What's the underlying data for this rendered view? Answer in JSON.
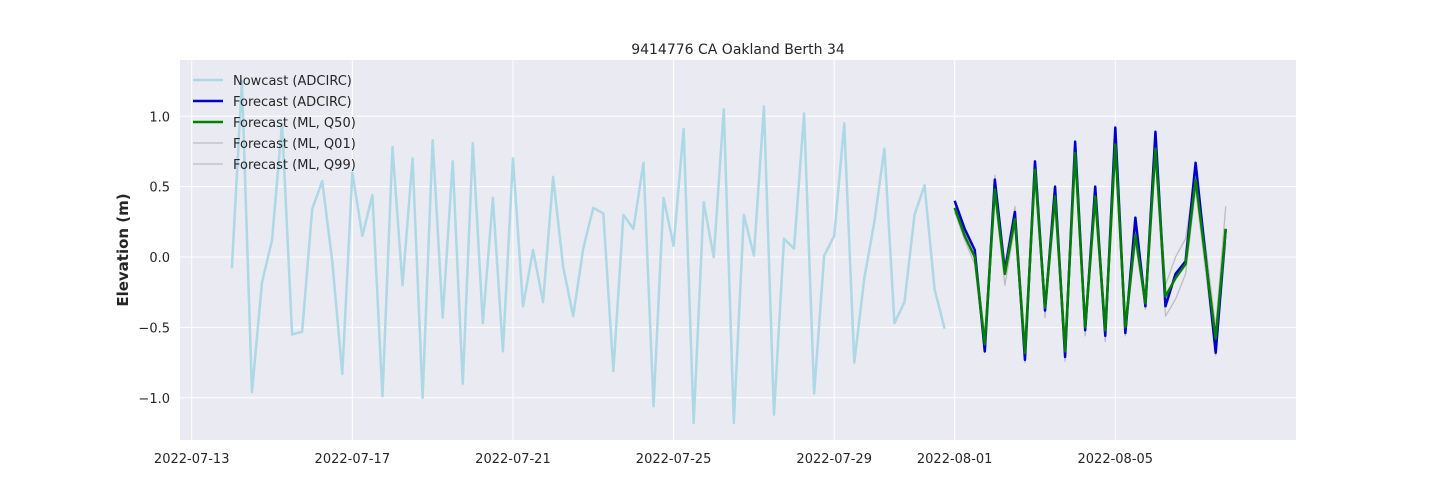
{
  "chart_data": {
    "type": "line",
    "title": "9414776 CA Oakland Berth 34",
    "xlabel": "",
    "ylabel": "Elevation (m)",
    "xlim": [
      "2022-07-12T17:00",
      "2022-08-09T12:00"
    ],
    "ylim": [
      -1.3,
      1.4
    ],
    "grid": true,
    "legend": "top-left",
    "xticks": [
      "2022-07-13",
      "2022-07-17",
      "2022-07-21",
      "2022-07-25",
      "2022-07-29",
      "2022-08-01",
      "2022-08-05"
    ],
    "yticks": [
      -1.0,
      -0.5,
      0.0,
      0.5,
      1.0
    ],
    "ytick_labels": [
      "−1.0",
      "−0.5",
      "0.0",
      "0.5",
      "1.0"
    ],
    "colors": {
      "background": "#eaeaf2",
      "grid": "#ffffff",
      "nowcast": "#add8e6",
      "forecast_adcirc": "#0000cd",
      "forecast_q50": "#008000",
      "forecast_q01": "#bdbdbd",
      "forecast_q99": "#bdbdbd"
    },
    "series": [
      {
        "name": "Nowcast (ADCIRC)",
        "x": [
          "2022-07-14T00:00",
          "2022-07-14T06:00",
          "2022-07-14T12:00",
          "2022-07-14T18:00",
          "2022-07-15T00:00",
          "2022-07-15T06:00",
          "2022-07-15T12:00",
          "2022-07-15T18:00",
          "2022-07-16T00:00",
          "2022-07-16T06:00",
          "2022-07-16T12:00",
          "2022-07-16T18:00",
          "2022-07-17T00:00",
          "2022-07-17T06:00",
          "2022-07-17T12:00",
          "2022-07-17T18:00",
          "2022-07-18T00:00",
          "2022-07-18T06:00",
          "2022-07-18T12:00",
          "2022-07-18T18:00",
          "2022-07-19T00:00",
          "2022-07-19T06:00",
          "2022-07-19T12:00",
          "2022-07-19T18:00",
          "2022-07-20T00:00",
          "2022-07-20T06:00",
          "2022-07-20T12:00",
          "2022-07-20T18:00",
          "2022-07-21T00:00",
          "2022-07-21T06:00",
          "2022-07-21T12:00",
          "2022-07-21T18:00",
          "2022-07-22T00:00",
          "2022-07-22T06:00",
          "2022-07-22T12:00",
          "2022-07-22T18:00",
          "2022-07-23T00:00",
          "2022-07-23T06:00",
          "2022-07-23T12:00",
          "2022-07-23T18:00",
          "2022-07-24T00:00",
          "2022-07-24T06:00",
          "2022-07-24T12:00",
          "2022-07-24T18:00",
          "2022-07-25T00:00",
          "2022-07-25T06:00",
          "2022-07-25T12:00",
          "2022-07-25T18:00",
          "2022-07-26T00:00",
          "2022-07-26T06:00",
          "2022-07-26T12:00",
          "2022-07-26T18:00",
          "2022-07-27T00:00",
          "2022-07-27T06:00",
          "2022-07-27T12:00",
          "2022-07-27T18:00",
          "2022-07-28T00:00",
          "2022-07-28T06:00",
          "2022-07-28T12:00",
          "2022-07-28T18:00",
          "2022-07-29T00:00",
          "2022-07-29T06:00",
          "2022-07-29T12:00",
          "2022-07-29T18:00",
          "2022-07-30T00:00",
          "2022-07-30T06:00",
          "2022-07-30T12:00",
          "2022-07-30T18:00",
          "2022-07-31T00:00",
          "2022-07-31T06:00",
          "2022-07-31T12:00",
          "2022-07-31T18:00"
        ],
        "values": [
          -0.08,
          1.25,
          -0.96,
          -0.18,
          0.12,
          0.95,
          -0.55,
          -0.53,
          0.34,
          0.54,
          -0.03,
          -0.83,
          0.6,
          0.15,
          0.44,
          -0.99,
          0.78,
          -0.2,
          0.7,
          -1.0,
          0.83,
          -0.43,
          0.68,
          -0.9,
          0.81,
          -0.47,
          0.42,
          -0.67,
          0.7,
          -0.35,
          0.05,
          -0.32,
          0.57,
          -0.07,
          -0.42,
          0.06,
          0.35,
          0.31,
          -0.81,
          0.3,
          0.2,
          0.67,
          -1.06,
          0.42,
          0.08,
          0.91,
          -1.18,
          0.39,
          0.0,
          1.05,
          -1.18,
          0.3,
          0.01,
          1.07,
          -1.12,
          0.13,
          0.06,
          1.02,
          -0.97,
          0.01,
          0.15,
          0.95,
          -0.75,
          -0.15,
          0.25,
          0.77,
          -0.47,
          -0.32,
          0.3,
          0.51,
          -0.23,
          -0.51
        ]
      },
      {
        "name": "Forecast (ADCIRC)",
        "x": [
          "2022-08-01T00:00",
          "2022-08-01T06:00",
          "2022-08-01T12:00",
          "2022-08-01T18:00",
          "2022-08-02T00:00",
          "2022-08-02T06:00",
          "2022-08-02T12:00",
          "2022-08-02T18:00",
          "2022-08-03T00:00",
          "2022-08-03T06:00",
          "2022-08-03T12:00",
          "2022-08-03T18:00",
          "2022-08-04T00:00",
          "2022-08-04T06:00",
          "2022-08-04T12:00",
          "2022-08-04T18:00",
          "2022-08-05T00:00",
          "2022-08-05T06:00",
          "2022-08-05T12:00",
          "2022-08-05T18:00",
          "2022-08-06T00:00",
          "2022-08-06T06:00",
          "2022-08-06T12:00",
          "2022-08-06T18:00",
          "2022-08-07T00:00",
          "2022-08-07T06:00",
          "2022-08-07T12:00",
          "2022-08-07T18:00"
        ],
        "values": [
          0.4,
          0.2,
          0.05,
          -0.67,
          0.55,
          -0.1,
          0.32,
          -0.73,
          0.68,
          -0.38,
          0.5,
          -0.71,
          0.82,
          -0.52,
          0.5,
          -0.56,
          0.92,
          -0.54,
          0.28,
          -0.35,
          0.89,
          -0.35,
          -0.12,
          -0.03,
          0.67,
          0.0,
          -0.68,
          0.2
        ]
      },
      {
        "name": "Forecast (ML, Q50)",
        "x": [
          "2022-08-01T00:00",
          "2022-08-01T06:00",
          "2022-08-01T12:00",
          "2022-08-01T18:00",
          "2022-08-02T00:00",
          "2022-08-02T06:00",
          "2022-08-02T12:00",
          "2022-08-02T18:00",
          "2022-08-03T00:00",
          "2022-08-03T06:00",
          "2022-08-03T12:00",
          "2022-08-03T18:00",
          "2022-08-04T00:00",
          "2022-08-04T06:00",
          "2022-08-04T12:00",
          "2022-08-04T18:00",
          "2022-08-05T00:00",
          "2022-08-05T06:00",
          "2022-08-05T12:00",
          "2022-08-05T18:00",
          "2022-08-06T00:00",
          "2022-08-06T06:00",
          "2022-08-06T12:00",
          "2022-08-06T18:00",
          "2022-08-07T00:00",
          "2022-08-07T06:00",
          "2022-08-07T12:00",
          "2022-08-07T18:00"
        ],
        "values": [
          0.35,
          0.15,
          0.0,
          -0.62,
          0.48,
          -0.12,
          0.27,
          -0.68,
          0.62,
          -0.36,
          0.43,
          -0.67,
          0.74,
          -0.5,
          0.43,
          -0.52,
          0.8,
          -0.5,
          0.16,
          -0.33,
          0.77,
          -0.28,
          -0.15,
          -0.05,
          0.55,
          -0.02,
          -0.58,
          0.2
        ]
      },
      {
        "name": "Forecast (ML, Q01)",
        "x": [
          "2022-08-01T00:00",
          "2022-08-01T06:00",
          "2022-08-01T12:00",
          "2022-08-01T18:00",
          "2022-08-02T00:00",
          "2022-08-02T06:00",
          "2022-08-02T12:00",
          "2022-08-02T18:00",
          "2022-08-03T00:00",
          "2022-08-03T06:00",
          "2022-08-03T12:00",
          "2022-08-03T18:00",
          "2022-08-04T00:00",
          "2022-08-04T06:00",
          "2022-08-04T12:00",
          "2022-08-04T18:00",
          "2022-08-05T00:00",
          "2022-08-05T06:00",
          "2022-08-05T12:00",
          "2022-08-05T18:00",
          "2022-08-06T00:00",
          "2022-08-06T06:00",
          "2022-08-06T12:00",
          "2022-08-06T18:00",
          "2022-08-07T00:00",
          "2022-08-07T06:00",
          "2022-08-07T12:00",
          "2022-08-07T18:00"
        ],
        "values": [
          0.32,
          0.12,
          -0.05,
          -0.68,
          0.43,
          -0.2,
          0.22,
          -0.75,
          0.56,
          -0.43,
          0.36,
          -0.74,
          0.67,
          -0.56,
          0.36,
          -0.6,
          0.72,
          -0.56,
          0.1,
          -0.37,
          0.7,
          -0.42,
          -0.3,
          -0.12,
          0.48,
          -0.1,
          -0.7,
          0.1
        ]
      },
      {
        "name": "Forecast (ML, Q99)",
        "x": [
          "2022-08-01T00:00",
          "2022-08-01T06:00",
          "2022-08-01T12:00",
          "2022-08-01T18:00",
          "2022-08-02T00:00",
          "2022-08-02T06:00",
          "2022-08-02T12:00",
          "2022-08-02T18:00",
          "2022-08-03T00:00",
          "2022-08-03T06:00",
          "2022-08-03T12:00",
          "2022-08-03T18:00",
          "2022-08-04T00:00",
          "2022-08-04T06:00",
          "2022-08-04T12:00",
          "2022-08-04T18:00",
          "2022-08-05T00:00",
          "2022-08-05T06:00",
          "2022-08-05T12:00",
          "2022-08-05T18:00",
          "2022-08-06T00:00",
          "2022-08-06T06:00",
          "2022-08-06T12:00",
          "2022-08-06T18:00",
          "2022-08-07T00:00",
          "2022-08-07T06:00",
          "2022-08-07T12:00",
          "2022-08-07T18:00"
        ],
        "values": [
          0.38,
          0.18,
          0.04,
          -0.55,
          0.58,
          -0.05,
          0.36,
          -0.6,
          0.67,
          -0.3,
          0.48,
          -0.6,
          0.8,
          -0.44,
          0.48,
          -0.46,
          0.86,
          -0.46,
          0.22,
          -0.28,
          0.83,
          -0.2,
          0.0,
          0.13,
          0.6,
          0.08,
          -0.5,
          0.36
        ]
      }
    ]
  }
}
